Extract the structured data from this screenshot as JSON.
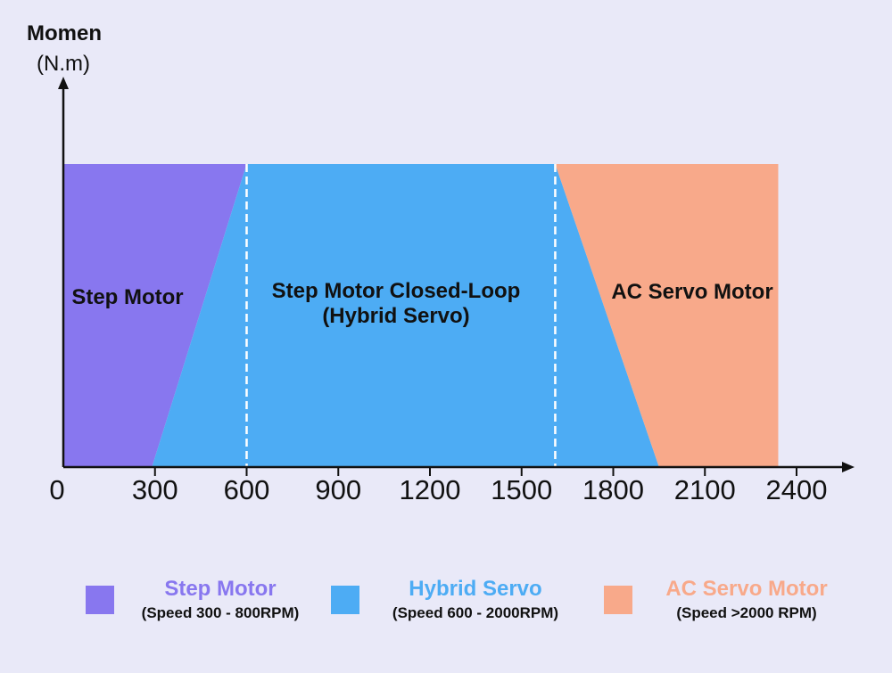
{
  "chart_data": {
    "type": "area",
    "xlabel": "",
    "ylabel_line1": "Momen",
    "ylabel_line2": "(N.m)",
    "x_ticks": [
      0,
      300,
      600,
      900,
      1200,
      1500,
      1800,
      2100,
      2400
    ],
    "xlim": [
      0,
      2400
    ],
    "ylim": [
      0,
      1
    ],
    "grid": false,
    "legend_position": "bottom",
    "boundaries": [
      600,
      1610
    ],
    "regions": [
      {
        "name": "Step Motor",
        "label": "Step Motor",
        "color": "#8877ef",
        "polygon": [
          [
            0,
            0
          ],
          [
            290,
            0
          ],
          [
            600,
            1
          ],
          [
            0,
            1
          ]
        ]
      },
      {
        "name": "Hybrid Servo",
        "label_line1": "Step Motor Closed-Loop",
        "label_line2": "(Hybrid Servo)",
        "color": "#4dacf4",
        "polygon": [
          [
            290,
            0
          ],
          [
            600,
            1
          ],
          [
            1610,
            1
          ],
          [
            1950,
            0
          ]
        ]
      },
      {
        "name": "AC Servo Motor",
        "label": "AC Servo Motor",
        "color": "#f8a98a",
        "polygon": [
          [
            1610,
            1
          ],
          [
            2340,
            1
          ],
          [
            2340,
            0
          ],
          [
            1950,
            0
          ]
        ]
      }
    ]
  },
  "legend": [
    {
      "name": "Step Motor",
      "desc": "(Speed 300 - 800RPM)",
      "color": "#8877ef"
    },
    {
      "name": "Hybrid Servo",
      "desc": "(Speed 600 - 2000RPM)",
      "color": "#4dacf4"
    },
    {
      "name": "AC Servo Motor",
      "desc": "(Speed >2000 RPM)",
      "color": "#f8a98a"
    }
  ]
}
